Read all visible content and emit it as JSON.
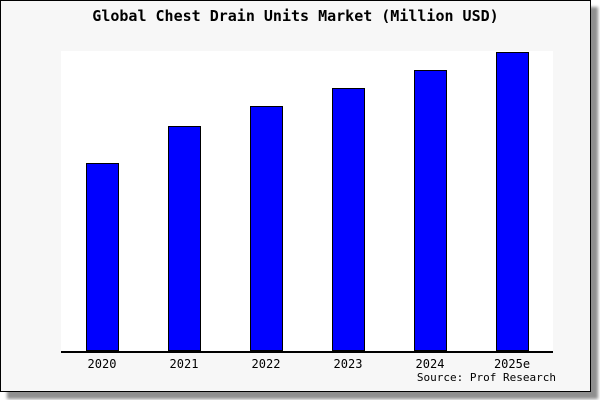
{
  "card": {
    "background": "#f7f7f7",
    "border_color": "#000000",
    "shadow_color": "#8f8f8f",
    "plot_background": "#ffffff",
    "axis_color": "#000000"
  },
  "chart": {
    "title": "Global Chest Drain Units Market (Million USD)",
    "source": "Source: Prof Research"
  },
  "chart_data": {
    "type": "bar",
    "title": "Global Chest Drain Units Market (Million USD)",
    "categories": [
      "2020",
      "2021",
      "2022",
      "2023",
      "2024",
      "2025e"
    ],
    "values": [
      188,
      225,
      245,
      263,
      281,
      299
    ],
    "value_note": "y-axis has no tick labels; values estimated in relative units from bar heights",
    "xlabel": "",
    "ylabel": "",
    "ylim": [
      0,
      300
    ],
    "grid": false,
    "legend": false,
    "bar_color": "#0000ff",
    "bar_border_color": "#000000",
    "source": "Source: Prof Research"
  }
}
